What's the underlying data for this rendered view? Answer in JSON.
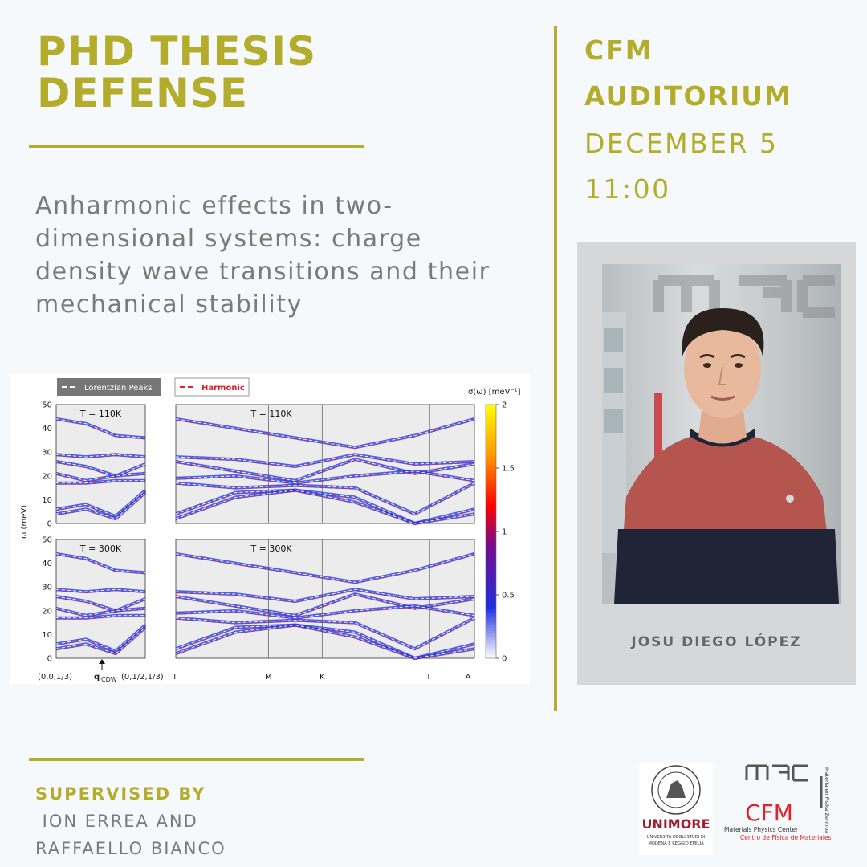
{
  "header": {
    "title_line1": "PHD THESIS",
    "title_line2": "DEFENSE"
  },
  "thesis": {
    "title": "Anharmonic effects in two-dimensional systems: charge density wave transitions and their mechanical stability"
  },
  "event": {
    "venue_line1": "CFM",
    "venue_line2": "AUDITORIUM",
    "date": "DECEMBER 5",
    "time": "11:00"
  },
  "presenter": {
    "name": "JOSU DIEGO LÓPEZ"
  },
  "supervision": {
    "label": "SUPERVISED BY",
    "line1": " ION ERREA AND",
    "line2": "RAFFAELLO BIANCO"
  },
  "logos": {
    "unimore_name": "UNIMORE",
    "unimore_sub1": "UNIVERSITÀ DEGLI STUDI DI",
    "unimore_sub2": "MODENA E REGGIO EMILIA",
    "cfm_name": "CFM",
    "cfm_sub1": "Materials Physics Center",
    "cfm_sub2": "Centro de Física de Materiales",
    "cfm_side": "Materialen Fisika Zentroa"
  },
  "colors": {
    "accent": "#b3ad2b",
    "text_gray": "#7a7a7a",
    "band_blue": "#1f2fe0",
    "harmonic_red": "#e0202a"
  },
  "chart_data": {
    "type": "heatmap",
    "legend": {
      "lorentzian": "Lorentzian Peaks",
      "harmonic": "Harmonic"
    },
    "colorbar_label": "σ(ω) [meV⁻¹]",
    "colorbar_ticks": [
      "2",
      "1.5",
      "1",
      "0.5",
      "0"
    ],
    "ylabel": "ω (meV)",
    "ylim": [
      0,
      50
    ],
    "yticks": [
      "50",
      "40",
      "30",
      "20",
      "10",
      "0"
    ],
    "panel_labels": [
      "T = 110K",
      "T = 110K",
      "T = 300K",
      "T = 300K"
    ],
    "left_xticks": [
      "(0,0,1/3)",
      "q",
      "CDW",
      "(0,1/2,1/3)"
    ],
    "right_xticks": [
      "Γ",
      "M",
      "K",
      "Γ",
      "A"
    ]
  }
}
